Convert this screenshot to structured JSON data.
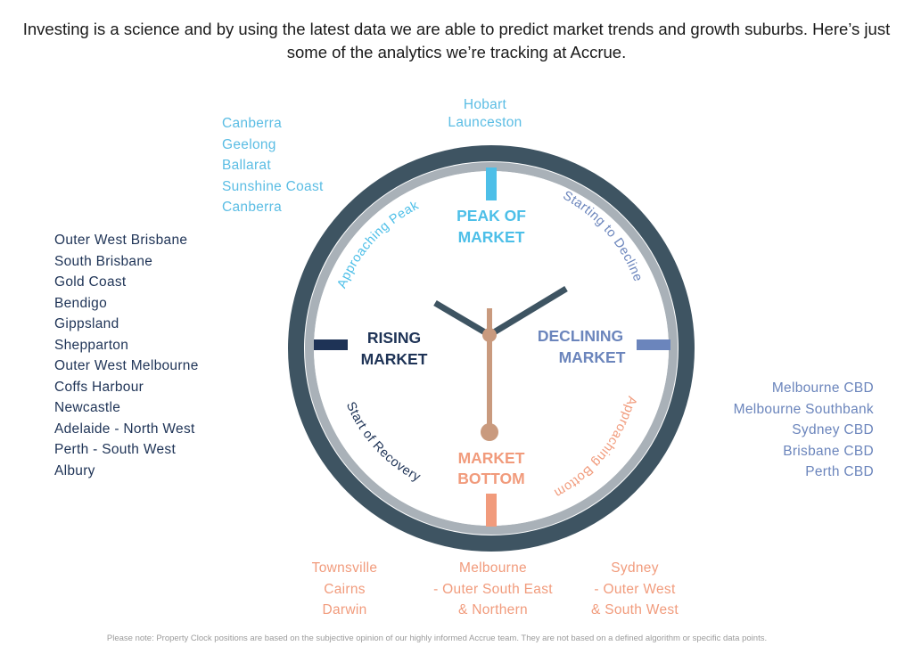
{
  "intro": "Investing is a science and by using the latest data we are able to predict market trends and growth suburbs. Here’s just some of the analytics we’re tracking at Accrue.",
  "clock": {
    "peak_line1": "PEAK OF",
    "peak_line2": "MARKET",
    "rising_line1": "RISING",
    "rising_line2": "MARKET",
    "declining_line1": "DECLINING",
    "declining_line2": "MARKET",
    "bottom_line1": "MARKET",
    "bottom_line2": "BOTTOM",
    "approaching_peak": "Approaching Peak",
    "starting_to_decline": "Starting to Decline",
    "start_of_recovery": "Start of Recovery",
    "approaching_bottom": "Approaching Bottom"
  },
  "lists": {
    "top_left": [
      "Canberra",
      "Geelong",
      "Ballarat",
      "Sunshine Coast",
      "Canberra"
    ],
    "top": [
      "Hobart",
      "Launceston"
    ],
    "left": [
      "Outer West Brisbane",
      "South Brisbane",
      "Gold Coast",
      "Bendigo",
      "Gippsland",
      "Shepparton",
      "Outer West Melbourne",
      "Coffs Harbour",
      "Newcastle",
      "Adelaide - North West",
      "Perth - South West",
      "Albury"
    ],
    "right": [
      "Melbourne CBD",
      "Melbourne Southbank",
      "Sydney CBD",
      "Brisbane CBD",
      "Perth CBD"
    ],
    "bottom_1": [
      "Townsville",
      "Cairns",
      "Darwin"
    ],
    "bottom_2": [
      "Melbourne",
      "- Outer South East",
      "& Northern"
    ],
    "bottom_3": [
      "Sydney",
      "- Outer West",
      "& South West"
    ]
  },
  "disclaimer": "Please note: Property Clock positions are based on the subjective opinion of our highly informed Accrue team. They are not based on a defined algorithm or specific data points.",
  "colors": {
    "peak": "#4dbfe8",
    "rising": "#1e3356",
    "declining": "#6b85bc",
    "bottom": "#f19b7c",
    "rim_outer": "#3e5462",
    "rim_inner": "#a9b1b8",
    "hand_main": "#3e5462",
    "hand_second": "#c99a7e"
  }
}
